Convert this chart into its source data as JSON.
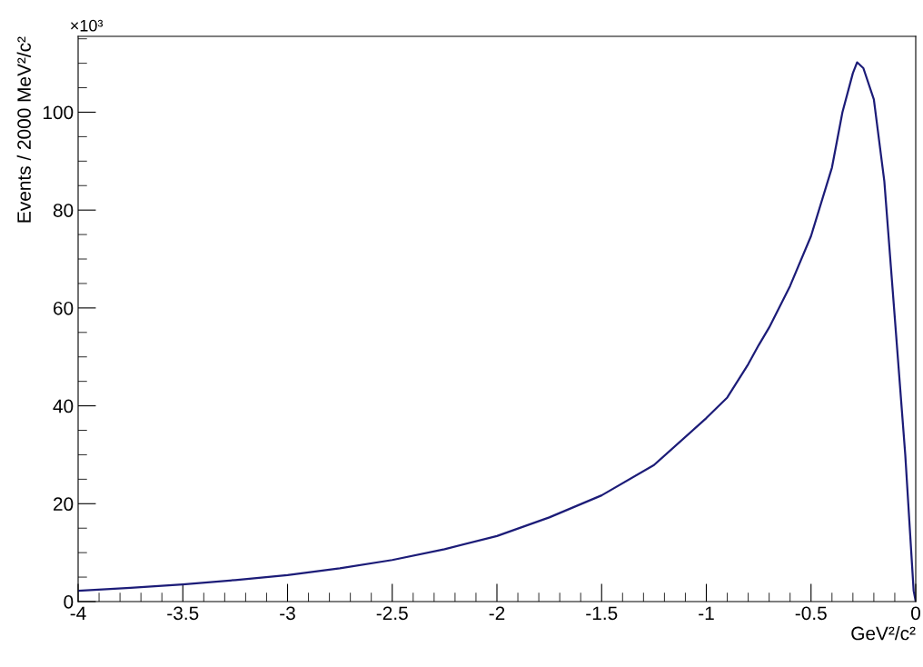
{
  "chart_data": {
    "type": "line",
    "xlabel": "GeV²/c²",
    "ylabel": "Events / 2000 MeV²/c²",
    "annotations": [
      "×10³"
    ],
    "series": [
      {
        "color": "#1c1c78",
        "x": [
          -4,
          -3.75,
          -3.5,
          -3.25,
          -3,
          -2.75,
          -2.5,
          -2.25,
          -2,
          -1.75,
          -1.5,
          -1.25,
          -1,
          -0.9,
          -0.8,
          -0.75,
          -0.7,
          -0.6,
          -0.5,
          -0.4,
          -0.35,
          -0.3,
          -0.28,
          -0.25,
          -0.2,
          -0.15,
          -0.1,
          -0.05,
          -0.01,
          0
        ],
        "values": [
          2.2,
          2.8,
          3.5,
          4.4,
          5.4,
          6.8,
          8.5,
          10.7,
          13.4,
          17.2,
          21.7,
          27.9,
          37.5,
          41.7,
          48.5,
          52.4,
          56,
          64.5,
          74.7,
          88.7,
          100,
          108,
          110.2,
          109,
          102.6,
          85.9,
          58,
          30,
          2.2,
          0
        ]
      }
    ],
    "xlim": [
      -4,
      0
    ],
    "ylim": [
      0,
      115.5
    ],
    "xticks": [
      -4,
      -3.5,
      -3,
      -2.5,
      -2,
      -1.5,
      -1,
      -0.5,
      0
    ],
    "yticks": [
      0,
      20,
      40,
      60,
      80,
      100
    ],
    "grid": false,
    "legend": false,
    "marker": "none",
    "line_style": "solid"
  }
}
